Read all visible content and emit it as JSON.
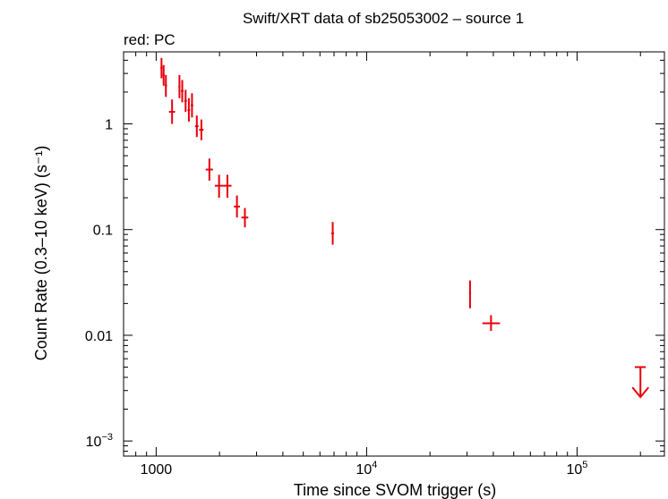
{
  "chart_data": {
    "type": "scatter",
    "title": "Swift/XRT data of sb25053002 – source 1",
    "subtitle": "red: PC",
    "xlabel": "Time since SVOM trigger (s)",
    "ylabel": "Count Rate (0.3–10 keV) (s⁻¹)",
    "xscale": "log",
    "yscale": "log",
    "xlim": [
      700,
      260000
    ],
    "ylim": [
      0.00072,
      4.8
    ],
    "color": "#e8000b",
    "x_ticks": [
      {
        "value": 1000,
        "label": "1000",
        "sup": ""
      },
      {
        "value": 10000,
        "label": "10",
        "sup": "4"
      },
      {
        "value": 100000,
        "label": "10",
        "sup": "5"
      }
    ],
    "y_ticks": [
      {
        "value": 1,
        "label": "1",
        "sup": ""
      },
      {
        "value": 0.1,
        "label": "0.1",
        "sup": ""
      },
      {
        "value": 0.01,
        "label": "0.01",
        "sup": ""
      },
      {
        "value": 0.001,
        "label": "10",
        "sup": "−3"
      }
    ],
    "series": [
      {
        "points": [
          {
            "x": 1060,
            "xlo": 1048,
            "xhi": 1072,
            "y": 3.4,
            "ylo": 2.7,
            "yhi": 4.2
          },
          {
            "x": 1085,
            "xlo": 1073,
            "xhi": 1097,
            "y": 2.9,
            "ylo": 2.3,
            "yhi": 3.6
          },
          {
            "x": 1112,
            "xlo": 1098,
            "xhi": 1126,
            "y": 2.3,
            "ylo": 1.8,
            "yhi": 2.9
          },
          {
            "x": 1190,
            "xlo": 1150,
            "xhi": 1230,
            "y": 1.3,
            "ylo": 1.0,
            "yhi": 1.7
          },
          {
            "x": 1290,
            "xlo": 1276,
            "xhi": 1304,
            "y": 2.25,
            "ylo": 1.75,
            "yhi": 2.9
          },
          {
            "x": 1330,
            "xlo": 1310,
            "xhi": 1350,
            "y": 2.05,
            "ylo": 1.6,
            "yhi": 2.6
          },
          {
            "x": 1380,
            "xlo": 1360,
            "xhi": 1400,
            "y": 1.65,
            "ylo": 1.3,
            "yhi": 2.1
          },
          {
            "x": 1430,
            "xlo": 1410,
            "xhi": 1450,
            "y": 1.35,
            "ylo": 1.05,
            "yhi": 1.75
          },
          {
            "x": 1480,
            "xlo": 1460,
            "xhi": 1500,
            "y": 1.5,
            "ylo": 1.15,
            "yhi": 1.95
          },
          {
            "x": 1560,
            "xlo": 1530,
            "xhi": 1590,
            "y": 0.95,
            "ylo": 0.75,
            "yhi": 1.2
          },
          {
            "x": 1640,
            "xlo": 1600,
            "xhi": 1680,
            "y": 0.88,
            "ylo": 0.7,
            "yhi": 1.1
          },
          {
            "x": 1790,
            "xlo": 1720,
            "xhi": 1860,
            "y": 0.37,
            "ylo": 0.29,
            "yhi": 0.47
          },
          {
            "x": 1990,
            "xlo": 1900,
            "xhi": 2080,
            "y": 0.26,
            "ylo": 0.2,
            "yhi": 0.33
          },
          {
            "x": 2180,
            "xlo": 2080,
            "xhi": 2280,
            "y": 0.26,
            "ylo": 0.2,
            "yhi": 0.33
          },
          {
            "x": 2420,
            "xlo": 2340,
            "xhi": 2500,
            "y": 0.165,
            "ylo": 0.13,
            "yhi": 0.21
          },
          {
            "x": 2640,
            "xlo": 2540,
            "xhi": 2740,
            "y": 0.13,
            "ylo": 0.105,
            "yhi": 0.16
          },
          {
            "x": 6900,
            "xlo": 6800,
            "xhi": 7000,
            "y": 0.092,
            "ylo": 0.072,
            "yhi": 0.118
          },
          {
            "x": 31000,
            "xlo": 30700,
            "xhi": 31300,
            "y": 0.025,
            "ylo": 0.018,
            "yhi": 0.033
          },
          {
            "x": 39000,
            "xlo": 35500,
            "xhi": 43000,
            "y": 0.013,
            "ylo": 0.011,
            "yhi": 0.0155
          }
        ],
        "upper_limits": [
          {
            "x": 200000,
            "xlo": 188000,
            "xhi": 212000,
            "y": 0.005,
            "arrow_to": 0.0026
          }
        ]
      }
    ]
  }
}
